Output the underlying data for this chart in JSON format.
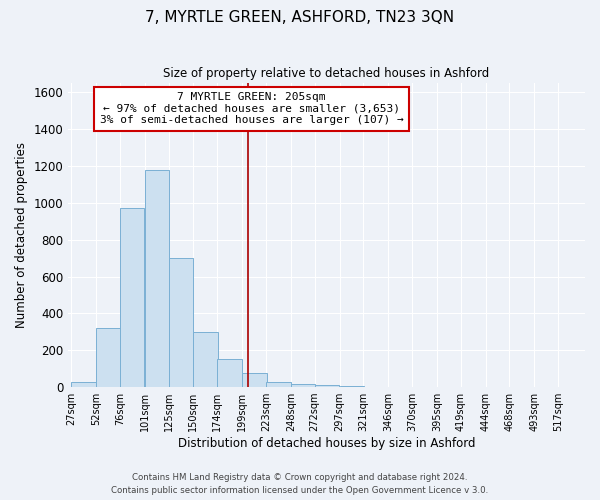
{
  "title": "7, MYRTLE GREEN, ASHFORD, TN23 3QN",
  "subtitle": "Size of property relative to detached houses in Ashford",
  "xlabel": "Distribution of detached houses by size in Ashford",
  "ylabel": "Number of detached properties",
  "bar_color": "#cce0f0",
  "bar_edge_color": "#7ab0d4",
  "background_color": "#eef2f8",
  "grid_color": "#ffffff",
  "bin_labels": [
    "27sqm",
    "52sqm",
    "76sqm",
    "101sqm",
    "125sqm",
    "150sqm",
    "174sqm",
    "199sqm",
    "223sqm",
    "248sqm",
    "272sqm",
    "297sqm",
    "321sqm",
    "346sqm",
    "370sqm",
    "395sqm",
    "419sqm",
    "444sqm",
    "468sqm",
    "493sqm",
    "517sqm"
  ],
  "bin_edges": [
    27,
    52,
    76,
    101,
    125,
    150,
    174,
    199,
    223,
    248,
    272,
    297,
    321,
    346,
    370,
    395,
    419,
    444,
    468,
    493,
    517
  ],
  "bar_heights": [
    30,
    320,
    970,
    1180,
    700,
    300,
    150,
    75,
    30,
    15,
    10,
    5,
    3,
    2,
    2,
    1,
    0,
    0,
    0,
    1
  ],
  "ylim": [
    0,
    1650
  ],
  "yticks": [
    0,
    200,
    400,
    600,
    800,
    1000,
    1200,
    1400,
    1600
  ],
  "property_line_x": 205,
  "property_line_color": "#aa0000",
  "annotation_title": "7 MYRTLE GREEN: 205sqm",
  "annotation_line1": "← 97% of detached houses are smaller (3,653)",
  "annotation_line2": "3% of semi-detached houses are larger (107) →",
  "annotation_box_color": "#ffffff",
  "annotation_box_edge": "#cc0000",
  "footer_line1": "Contains HM Land Registry data © Crown copyright and database right 2024.",
  "footer_line2": "Contains public sector information licensed under the Open Government Licence v 3.0."
}
